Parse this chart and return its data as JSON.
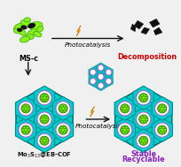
{
  "bg_color": "#f0f0f0",
  "cof_cyan": "#00cccc",
  "cof_edge": "#006666",
  "hex_edge": "#008888",
  "ring_purple": "#bb55cc",
  "cluster_green_light": "#77ee11",
  "cluster_green_dark": "#33aa00",
  "cluster_edge": "#226600",
  "arrow_color": "#111111",
  "lightning_body": "#ffbb00",
  "lightning_edge": "#cc7700",
  "ms_green_light": "#88ee22",
  "ms_green_dark": "#33aa00",
  "ms_dark": "#111111",
  "decomp_dark": "#111111",
  "text_msc": "MS-c",
  "text_photocatalysis": "Photocatalysis",
  "text_decomposition": "Decomposition",
  "text_mo3s13": "Mo$_3$S$_{13}$@EB-COF",
  "text_stable": "Stable",
  "text_recyclable": "Recyclable",
  "decomp_text_color": "#cc0000",
  "stable_text_color": "#8822bb",
  "formula_text_color": "#111111",
  "label_fontsize": 5.8,
  "sub_fontsize": 5.2
}
